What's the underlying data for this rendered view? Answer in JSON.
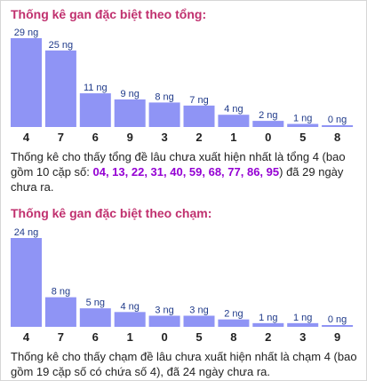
{
  "section1": {
    "title": "Thống kê gan đặc biệt theo tổng:",
    "note_before": "Thống kê cho thấy tổng đề lâu chưa xuất hiện nhất là tổng 4 (bao gồm 10 cặp số: ",
    "numbers": "04, 13, 22, 31, 40, 59, 68, 77, 86, 95",
    "note_after": ") đã 29 ngày chưa ra."
  },
  "section2": {
    "title": "Thống kê gan đặc biệt theo chạm:",
    "note": "Thống kê cho thấy chạm đề lâu chưa xuất hiện nhất là chạm 4 (bao gồm 19 cặp số có chứa số 4), đã 24 ngày chưa ra."
  },
  "colors": {
    "bar": "#8f94f5",
    "title": "#c0306e",
    "highlight": "#9400d3",
    "label": "#1f3a8a"
  },
  "chart_data": [
    {
      "type": "bar",
      "title": "Thống kê gan đặc biệt theo tổng:",
      "categories": [
        "4",
        "7",
        "6",
        "9",
        "3",
        "2",
        "1",
        "0",
        "5",
        "8"
      ],
      "values": [
        29,
        25,
        11,
        9,
        8,
        7,
        4,
        2,
        1,
        0
      ],
      "data_labels": [
        "29 ng",
        "25 ng",
        "11 ng",
        "9 ng",
        "8 ng",
        "7 ng",
        "4 ng",
        "2 ng",
        "1 ng",
        "0 ng"
      ],
      "ylim": [
        0,
        29
      ],
      "grid": false
    },
    {
      "type": "bar",
      "title": "Thống kê gan đặc biệt theo chạm:",
      "categories": [
        "4",
        "7",
        "6",
        "1",
        "0",
        "5",
        "8",
        "2",
        "3",
        "9"
      ],
      "values": [
        24,
        8,
        5,
        4,
        3,
        3,
        2,
        1,
        1,
        0
      ],
      "data_labels": [
        "24 ng",
        "8 ng",
        "5 ng",
        "4 ng",
        "3 ng",
        "3 ng",
        "2 ng",
        "1 ng",
        "1 ng",
        "0 ng"
      ],
      "ylim": [
        0,
        24
      ],
      "grid": false
    }
  ]
}
